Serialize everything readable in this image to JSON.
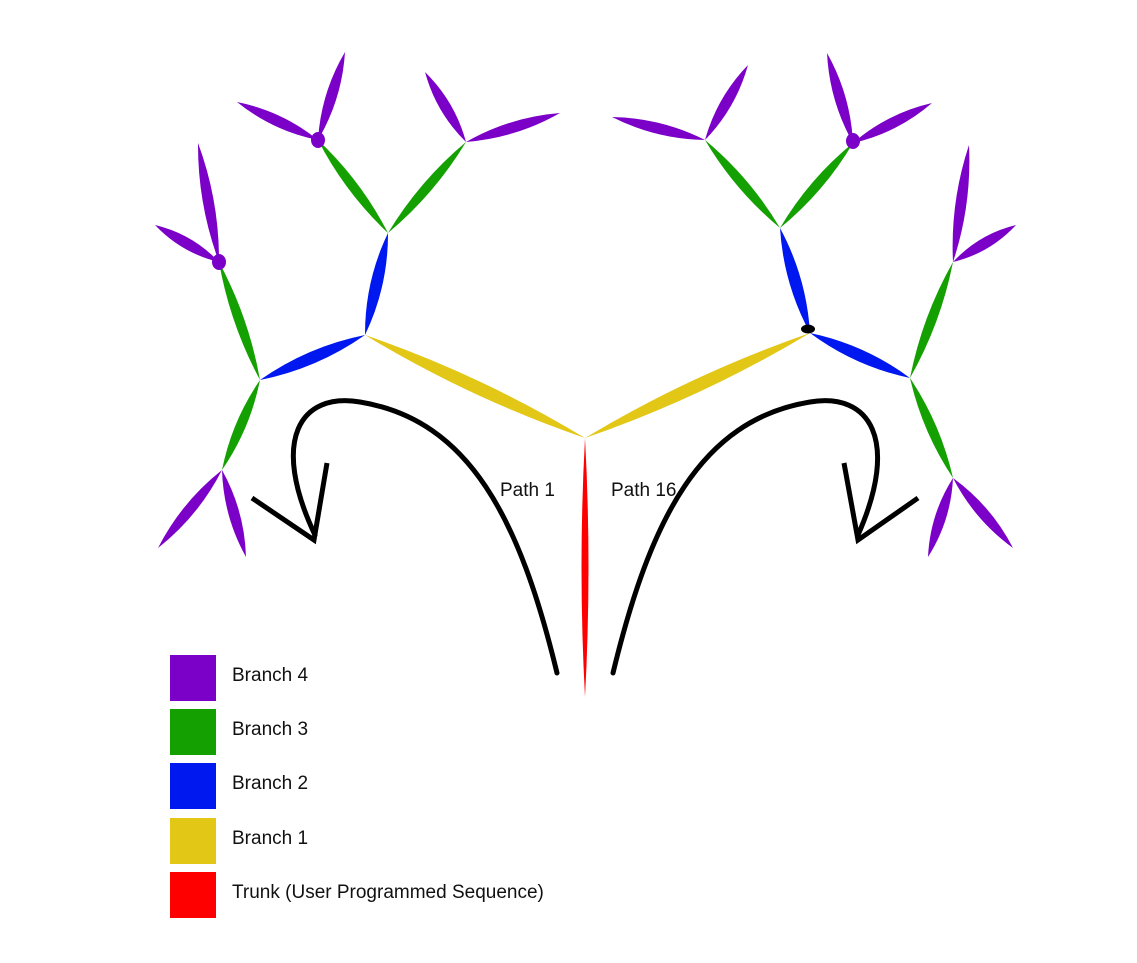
{
  "colors": {
    "branch4": "#7b00c8",
    "branch3": "#14a000",
    "branch2": "#0018f0",
    "branch1": "#e2c717",
    "trunk": "#ff0000",
    "arrow": "#000000"
  },
  "path_labels": {
    "left": "Path 1",
    "right": "Path 16"
  },
  "legend": [
    {
      "key": "branch4",
      "label": "Branch 4",
      "color": "#7b00c8"
    },
    {
      "key": "branch3",
      "label": "Branch 3",
      "color": "#14a000"
    },
    {
      "key": "branch2",
      "label": "Branch 2",
      "color": "#0018f0"
    },
    {
      "key": "branch1",
      "label": "Branch 1",
      "color": "#e2c717"
    },
    {
      "key": "trunk",
      "label": "Trunk (User Programmed Sequence)",
      "color": "#ff0000"
    }
  ]
}
